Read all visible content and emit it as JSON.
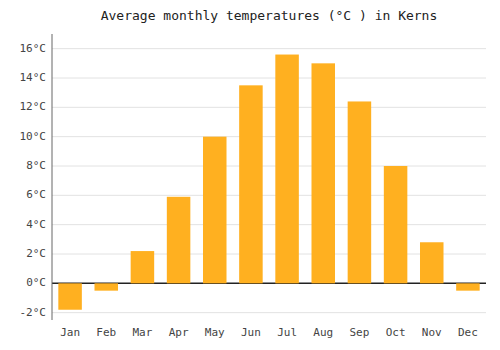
{
  "chart_data": {
    "type": "bar",
    "title": "Average monthly temperatures (°C ) in Kerns",
    "categories": [
      "Jan",
      "Feb",
      "Mar",
      "Apr",
      "May",
      "Jun",
      "Jul",
      "Aug",
      "Sep",
      "Oct",
      "Nov",
      "Dec"
    ],
    "values": [
      -1.8,
      -0.5,
      2.2,
      5.9,
      10.0,
      13.5,
      15.6,
      15.0,
      12.4,
      8.0,
      2.8,
      -0.5
    ],
    "color": "#FFB020",
    "ylim": [
      -2.5,
      17.0
    ],
    "yticks": [
      {
        "value": -2,
        "label": "-2°C"
      },
      {
        "value": 0,
        "label": "0°C"
      },
      {
        "value": 2,
        "label": "2°C"
      },
      {
        "value": 4,
        "label": "4°C"
      },
      {
        "value": 6,
        "label": "6°C"
      },
      {
        "value": 8,
        "label": "8°C"
      },
      {
        "value": 10,
        "label": "10°C"
      },
      {
        "value": 12,
        "label": "12°C"
      },
      {
        "value": 14,
        "label": "14°C"
      },
      {
        "value": 16,
        "label": "16°C"
      }
    ],
    "grid": true
  }
}
